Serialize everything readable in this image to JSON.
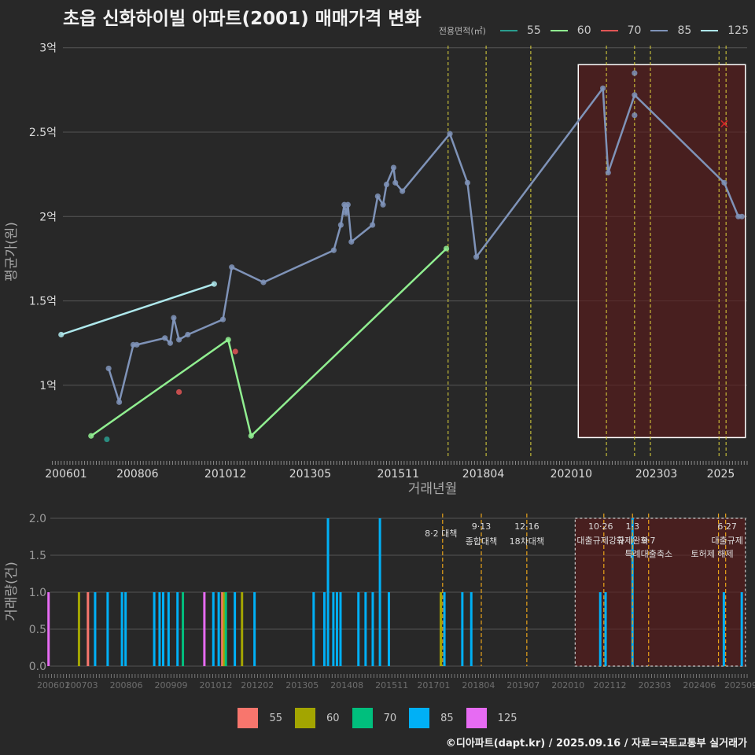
{
  "title": "초읍 신화하이빌 아파트(2001) 매매가격 변화",
  "footer": "©디아파트(dapt.kr) / 2025.09.16 / 자료=국토교통부 실거래가",
  "legend_title": "전용면적(㎡)",
  "sizes": [
    {
      "label": "55",
      "line_color": "#2a9d8f",
      "bar_color": "#f8766d"
    },
    {
      "label": "60",
      "line_color": "#90ee90",
      "bar_color": "#a3a500"
    },
    {
      "label": "70",
      "line_color": "#e05555",
      "bar_color": "#00bf7d"
    },
    {
      "label": "85",
      "line_color": "#7f93b8",
      "bar_color": "#00b0f6"
    },
    {
      "label": "125",
      "line_color": "#aee8ec",
      "bar_color": "#e76bf3"
    }
  ],
  "chart_data": [
    {
      "type": "line",
      "title": "초읍 신화하이빌 아파트(2001) 매매가격 변화",
      "xlabel": "거래년월",
      "ylabel": "평균가(원)",
      "ylim": [
        0.58,
        3.05
      ],
      "xlim": [
        2006.3,
        2025.75
      ],
      "y_ticks": [
        {
          "v": 1,
          "label": "1억"
        },
        {
          "v": 1.5,
          "label": "1.5억"
        },
        {
          "v": 2,
          "label": "2억"
        },
        {
          "v": 2.5,
          "label": "2.5억"
        },
        {
          "v": 3,
          "label": "3억"
        }
      ],
      "x_ticks": [
        {
          "v": 2006.0,
          "label": "200601"
        },
        {
          "v": 2008.42,
          "label": "200806"
        },
        {
          "v": 2010.92,
          "label": "201012"
        },
        {
          "v": 2013.33,
          "label": "201305"
        },
        {
          "v": 2015.83,
          "label": "201511"
        },
        {
          "v": 2018.25,
          "label": "201804"
        },
        {
          "v": 2020.75,
          "label": "202010"
        },
        {
          "v": 2023.17,
          "label": "202303"
        },
        {
          "v": 2025.0,
          "label": "2025"
        }
      ],
      "series": [
        {
          "name": "55",
          "points": [
            {
              "x": 2007.55,
              "y": 0.68
            }
          ]
        },
        {
          "name": "60",
          "points": [
            {
              "x": 2007.1,
              "y": 0.7
            },
            {
              "x": 2011.0,
              "y": 1.27
            },
            {
              "x": 2011.65,
              "y": 0.7
            },
            {
              "x": 2017.2,
              "y": 1.81
            }
          ]
        },
        {
          "name": "70",
          "points": [
            {
              "x": 2009.6,
              "y": 0.96
            },
            {
              "x": 2011.2,
              "y": 1.2
            }
          ]
        },
        {
          "name": "85",
          "points": [
            {
              "x": 2007.6,
              "y": 1.1
            },
            {
              "x": 2007.9,
              "y": 0.9
            },
            {
              "x": 2008.3,
              "y": 1.24
            },
            {
              "x": 2008.4,
              "y": 1.24
            },
            {
              "x": 2009.2,
              "y": 1.28
            },
            {
              "x": 2009.35,
              "y": 1.25
            },
            {
              "x": 2009.45,
              "y": 1.4
            },
            {
              "x": 2009.6,
              "y": 1.27
            },
            {
              "x": 2009.85,
              "y": 1.3
            },
            {
              "x": 2010.85,
              "y": 1.39
            },
            {
              "x": 2011.1,
              "y": 1.7
            },
            {
              "x": 2012.0,
              "y": 1.61
            },
            {
              "x": 2014.0,
              "y": 1.8
            },
            {
              "x": 2014.2,
              "y": 1.95
            },
            {
              "x": 2014.3,
              "y": 2.07
            },
            {
              "x": 2014.35,
              "y": 2.02
            },
            {
              "x": 2014.4,
              "y": 2.07
            },
            {
              "x": 2014.5,
              "y": 1.85
            },
            {
              "x": 2015.1,
              "y": 1.95
            },
            {
              "x": 2015.25,
              "y": 2.12
            },
            {
              "x": 2015.4,
              "y": 2.07
            },
            {
              "x": 2015.5,
              "y": 2.19
            },
            {
              "x": 2015.7,
              "y": 2.29
            },
            {
              "x": 2015.75,
              "y": 2.2
            },
            {
              "x": 2015.95,
              "y": 2.15
            },
            {
              "x": 2017.3,
              "y": 2.49
            },
            {
              "x": 2017.8,
              "y": 2.2
            },
            {
              "x": 2018.05,
              "y": 1.76
            },
            {
              "x": 2021.65,
              "y": 2.76
            },
            {
              "x": 2021.8,
              "y": 2.26
            },
            {
              "x": 2022.55,
              "y": 2.85
            },
            {
              "x": 2022.55,
              "y": 2.6
            },
            {
              "x": 2022.55,
              "y": 2.72
            },
            {
              "x": 2025.1,
              "y": 2.2
            },
            {
              "x": 2025.5,
              "y": 2.0
            },
            {
              "x": 2025.6,
              "y": 2.0
            }
          ]
        },
        {
          "name": "125",
          "points": [
            {
              "x": 2006.25,
              "y": 1.3
            },
            {
              "x": 2010.6,
              "y": 1.6
            }
          ]
        }
      ],
      "line_points": {
        "60": [
          0,
          1,
          2,
          3
        ],
        "85": [
          0,
          1,
          2,
          3,
          4,
          5,
          6,
          7,
          8,
          9,
          10,
          11,
          12,
          13,
          14,
          15,
          16,
          17,
          18,
          19,
          20,
          21,
          22,
          23,
          24,
          25,
          26,
          27,
          28,
          29,
          32,
          33,
          34,
          35
        ],
        "125": [
          0,
          1
        ]
      },
      "markers": [
        {
          "x": 2025.1,
          "y": 2.55,
          "symbol": "x",
          "color": "#d62728"
        }
      ],
      "policy_lines": [
        2017.25,
        2018.33,
        2019.6,
        2021.75,
        2022.55,
        2023.0,
        2024.95,
        2025.15
      ],
      "highlight_range": [
        2020.95,
        2025.7
      ]
    },
    {
      "type": "bar",
      "xlabel": "",
      "ylabel": "거래량(건)",
      "ylim": [
        0,
        2.0
      ],
      "y_ticks": [
        {
          "v": 0,
          "label": "0.0"
        },
        {
          "v": 0.5,
          "label": "0.5"
        },
        {
          "v": 1,
          "label": "1.0"
        },
        {
          "v": 1.5,
          "label": "1.5"
        },
        {
          "v": 2,
          "label": "2.0"
        }
      ],
      "x_ticks": [
        {
          "v": 2006.0,
          "label": "200601"
        },
        {
          "v": 2007.17,
          "label": "200703"
        },
        {
          "v": 2008.42,
          "label": "200806"
        },
        {
          "v": 2009.67,
          "label": "200909"
        },
        {
          "v": 2010.92,
          "label": "201012"
        },
        {
          "v": 2012.08,
          "label": "201202"
        },
        {
          "v": 2013.33,
          "label": "201305"
        },
        {
          "v": 2014.58,
          "label": "201408"
        },
        {
          "v": 2015.83,
          "label": "201511"
        },
        {
          "v": 2017.0,
          "label": "201701"
        },
        {
          "v": 2018.25,
          "label": "201804"
        },
        {
          "v": 2019.5,
          "label": "201907"
        },
        {
          "v": 2020.75,
          "label": "202010"
        },
        {
          "v": 2021.92,
          "label": "202112"
        },
        {
          "v": 2023.17,
          "label": "202303"
        },
        {
          "v": 2024.42,
          "label": "202406"
        },
        {
          "v": 2025.67,
          "label": "202509"
        }
      ],
      "bars": [
        {
          "x": 2006.25,
          "v": 1,
          "size": "125"
        },
        {
          "x": 2007.1,
          "v": 1,
          "size": "60"
        },
        {
          "x": 2007.35,
          "v": 1,
          "size": "55"
        },
        {
          "x": 2007.55,
          "v": 1,
          "size": "85"
        },
        {
          "x": 2007.9,
          "v": 1,
          "size": "85"
        },
        {
          "x": 2008.3,
          "v": 1,
          "size": "85"
        },
        {
          "x": 2008.4,
          "v": 1,
          "size": "85"
        },
        {
          "x": 2009.2,
          "v": 1,
          "size": "85"
        },
        {
          "x": 2009.35,
          "v": 1,
          "size": "85"
        },
        {
          "x": 2009.45,
          "v": 1,
          "size": "85"
        },
        {
          "x": 2009.6,
          "v": 1,
          "size": "85"
        },
        {
          "x": 2009.85,
          "v": 1,
          "size": "85"
        },
        {
          "x": 2010.0,
          "v": 1,
          "size": "70"
        },
        {
          "x": 2010.6,
          "v": 1,
          "size": "125"
        },
        {
          "x": 2010.85,
          "v": 1,
          "size": "85"
        },
        {
          "x": 2011.0,
          "v": 1,
          "size": "85"
        },
        {
          "x": 2011.1,
          "v": 1,
          "size": "55"
        },
        {
          "x": 2011.15,
          "v": 1,
          "size": "60"
        },
        {
          "x": 2011.2,
          "v": 1,
          "size": "70"
        },
        {
          "x": 2011.45,
          "v": 1,
          "size": "85"
        },
        {
          "x": 2011.65,
          "v": 1,
          "size": "60"
        },
        {
          "x": 2012.0,
          "v": 1,
          "size": "85"
        },
        {
          "x": 2013.65,
          "v": 1,
          "size": "85"
        },
        {
          "x": 2013.95,
          "v": 1,
          "size": "85"
        },
        {
          "x": 2014.05,
          "v": 2,
          "size": "85"
        },
        {
          "x": 2014.2,
          "v": 1,
          "size": "85"
        },
        {
          "x": 2014.3,
          "v": 1,
          "size": "85"
        },
        {
          "x": 2014.4,
          "v": 1,
          "size": "85"
        },
        {
          "x": 2014.9,
          "v": 1,
          "size": "85"
        },
        {
          "x": 2015.1,
          "v": 1,
          "size": "85"
        },
        {
          "x": 2015.3,
          "v": 1,
          "size": "85"
        },
        {
          "x": 2015.5,
          "v": 2,
          "size": "85"
        },
        {
          "x": 2015.75,
          "v": 1,
          "size": "85"
        },
        {
          "x": 2017.2,
          "v": 1,
          "size": "60"
        },
        {
          "x": 2017.3,
          "v": 1,
          "size": "85"
        },
        {
          "x": 2017.8,
          "v": 1,
          "size": "85"
        },
        {
          "x": 2018.05,
          "v": 1,
          "size": "85"
        },
        {
          "x": 2021.65,
          "v": 1,
          "size": "85"
        },
        {
          "x": 2021.8,
          "v": 1,
          "size": "85"
        },
        {
          "x": 2022.55,
          "v": 2,
          "size": "85"
        },
        {
          "x": 2025.1,
          "v": 1,
          "size": "85"
        },
        {
          "x": 2025.6,
          "v": 1,
          "size": "85"
        }
      ],
      "policies": [
        {
          "x": 2017.25,
          "date": "8·2",
          "name": "대책"
        },
        {
          "x": 2018.33,
          "date": "9·13",
          "name": "종합대책"
        },
        {
          "x": 2019.6,
          "date": "12·16",
          "name": "18차대책"
        },
        {
          "x": 2021.75,
          "date": "10·26",
          "name": "대출규제강화"
        },
        {
          "x": 2022.55,
          "date": "1·3",
          "name": "규제완화"
        },
        {
          "x": 2023.0,
          "date": "9·7",
          "name": "특례대출축소"
        },
        {
          "x": 2024.95,
          "date": "",
          "name": "토허제 해제"
        },
        {
          "x": 2025.15,
          "date": "6·27",
          "name": "대출규제"
        }
      ],
      "highlight_range": [
        2020.95,
        2025.7
      ]
    }
  ]
}
